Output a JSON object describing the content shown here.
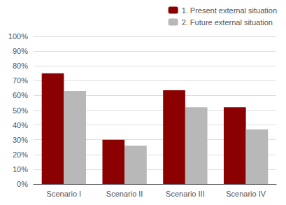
{
  "chart_data": {
    "type": "bar",
    "categories": [
      "Scenario I",
      "Scenario II",
      "Scenario III",
      "Scenario IV"
    ],
    "series": [
      {
        "name": "1. Present external situation",
        "values": [
          0.75,
          0.3,
          0.635,
          0.52
        ],
        "color": "#8B0000"
      },
      {
        "name": "2. Future external situation",
        "values": [
          0.63,
          0.26,
          0.52,
          0.37
        ],
        "color": "#B8B8B8"
      }
    ],
    "ylim": [
      0,
      1.0
    ],
    "yticks": [
      {
        "value": 0.0,
        "label": "0%"
      },
      {
        "value": 0.1,
        "label": "10%"
      },
      {
        "value": 0.2,
        "label": "20%"
      },
      {
        "value": 0.3,
        "label": "30%"
      },
      {
        "value": 0.4,
        "label": "40%"
      },
      {
        "value": 0.5,
        "label": "50%"
      },
      {
        "value": 0.6,
        "label": "60%"
      },
      {
        "value": 0.7,
        "label": "70%"
      },
      {
        "value": 0.8,
        "label": "80%"
      },
      {
        "value": 0.9,
        "label": "90%"
      },
      {
        "value": 1.0,
        "label": "100%"
      }
    ],
    "grid": true,
    "legend": "upper right"
  }
}
